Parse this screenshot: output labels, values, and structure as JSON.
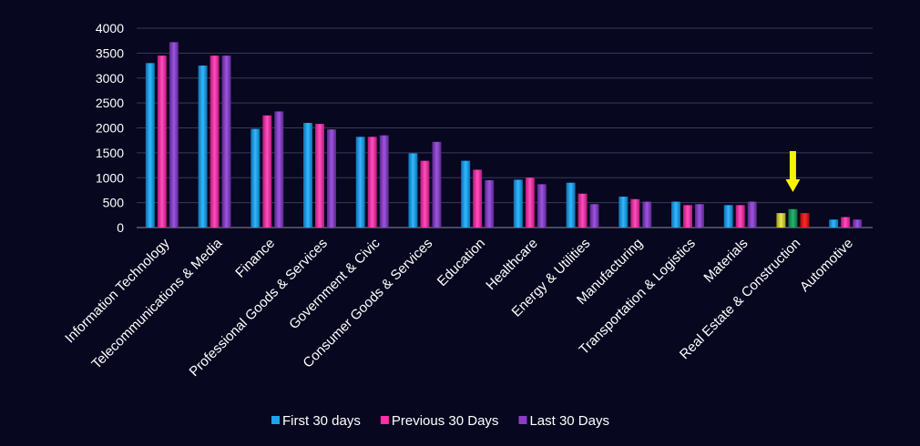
{
  "chart_data": {
    "type": "bar",
    "title": "",
    "xlabel": "",
    "ylabel": "",
    "ylim": [
      0,
      4000
    ],
    "yticks": [
      "0",
      "500",
      "1000",
      "1500",
      "2000",
      "2500",
      "3000",
      "3500",
      "4000"
    ],
    "grid": true,
    "legend_position": "bottom",
    "categories": [
      "Information Technology",
      "Telecommunications & Media",
      "Finance",
      "Professional Goods & Services",
      "Government & Civic",
      "Consumer Goods & Services",
      "Education",
      "Healthcare",
      "Energy & Utilities",
      "Manufacturing",
      "Transportation & Logistics",
      "Materials",
      "Real Estate & Construction",
      "Automotive"
    ],
    "series": [
      {
        "name": "First 30 days",
        "color": "#1ea3ee",
        "values": [
          3300,
          3250,
          1980,
          2100,
          1820,
          1490,
          1340,
          960,
          900,
          620,
          520,
          450,
          290,
          160
        ]
      },
      {
        "name": "Previous 30 Days",
        "color": "#ff2fa8",
        "values": [
          3450,
          3450,
          2250,
          2080,
          1820,
          1340,
          1160,
          1000,
          680,
          570,
          450,
          450,
          370,
          210
        ]
      },
      {
        "name": "Last 30 Days",
        "color": "#8a3cc8",
        "values": [
          3720,
          3450,
          2330,
          1970,
          1850,
          1720,
          950,
          870,
          470,
          520,
          470,
          520,
          290,
          160
        ]
      }
    ],
    "highlight": {
      "category": "Real Estate & Construction",
      "bar_colors": [
        "#d6d23a",
        "#1a9b5a",
        "#e01818"
      ],
      "marker": "down-arrow-icon",
      "marker_color": "#f5f500"
    }
  }
}
